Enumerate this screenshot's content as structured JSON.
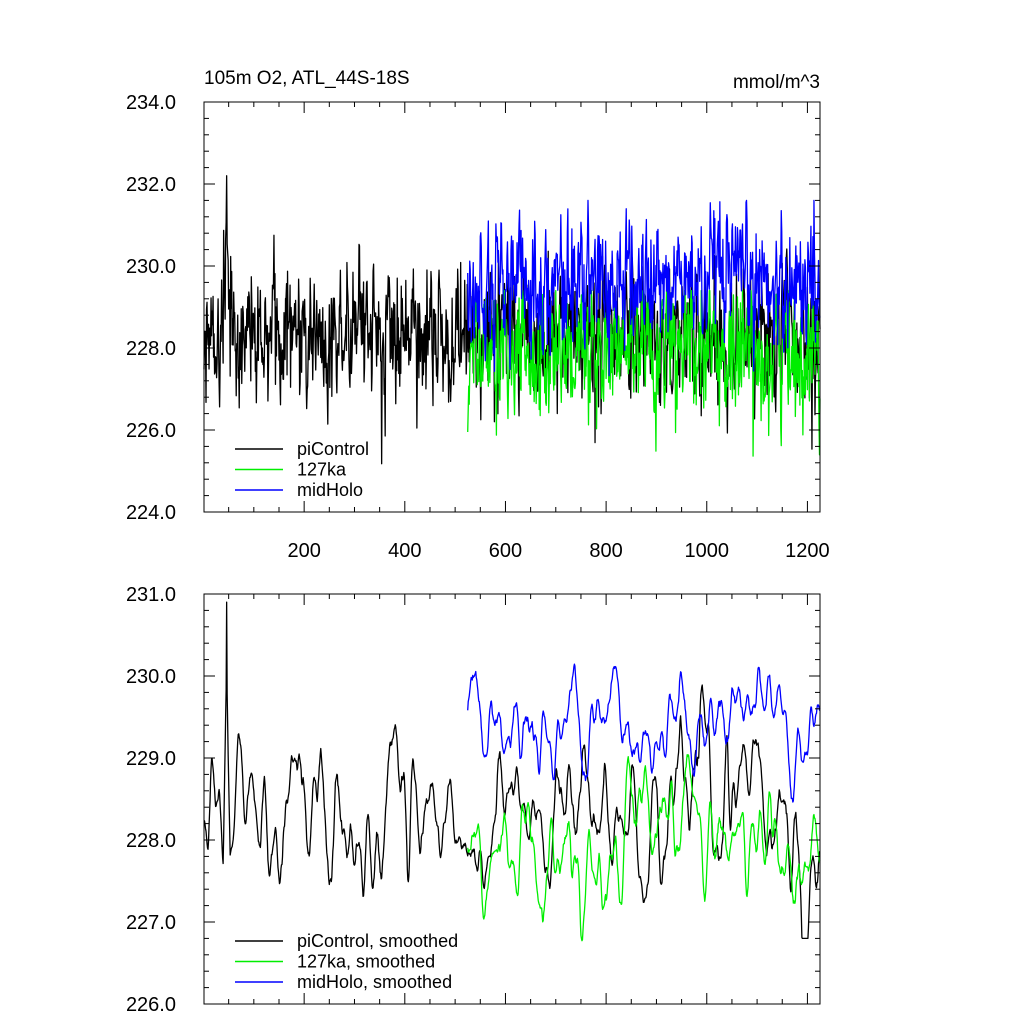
{
  "chart_data": [
    {
      "type": "line",
      "title": "105m O2, ATL_44S-18S",
      "units": "mmol/m^3",
      "xlabel": "",
      "ylabel": "",
      "xlim": [
        1,
        1225
      ],
      "ylim": [
        224.0,
        234.0
      ],
      "xticks": [
        200,
        400,
        600,
        800,
        1000,
        1200
      ],
      "xtick_labels": [
        "200",
        "400",
        "600",
        "800",
        "1000",
        "1200"
      ],
      "yticks": [
        224.0,
        226.0,
        228.0,
        230.0,
        232.0,
        234.0
      ],
      "ytick_labels": [
        "224.0",
        "226.0",
        "228.0",
        "230.0",
        "232.0",
        "234.0"
      ],
      "legend_position": "bottom-left",
      "series": [
        {
          "name": "piControl",
          "color": "#000000",
          "x_start": 1,
          "x_end": 1225,
          "n": 1225,
          "mean": 228.3,
          "std": 0.8,
          "min": 225.1,
          "max": 232.2
        },
        {
          "name": "127ka",
          "color": "#00ee00",
          "x_start": 525,
          "x_end": 1225,
          "n": 701,
          "mean": 227.9,
          "std": 0.85,
          "min": 224.6,
          "max": 229.4
        },
        {
          "name": "midHolo",
          "color": "#0000ff",
          "x_start": 525,
          "x_end": 1225,
          "n": 701,
          "mean": 229.6,
          "std": 0.75,
          "min": 227.1,
          "max": 231.6
        }
      ]
    },
    {
      "type": "line",
      "title": "",
      "xlabel": "",
      "ylabel": "",
      "xlim": [
        1,
        1225
      ],
      "ylim": [
        226.0,
        231.0
      ],
      "xticks": [
        200,
        400,
        600,
        800,
        1000,
        1200
      ],
      "yticks": [
        226.0,
        227.0,
        228.0,
        229.0,
        230.0,
        231.0
      ],
      "ytick_labels": [
        "226.0",
        "227.0",
        "228.0",
        "229.0",
        "230.0",
        "231.0"
      ],
      "legend_position": "bottom-left",
      "series": [
        {
          "name": "piControl, smoothed",
          "color": "#000000",
          "x_start": 1,
          "x_end": 1225,
          "n": 1225,
          "mean": 228.3,
          "std": 0.55,
          "min": 226.8,
          "max": 230.9
        },
        {
          "name": "127ka, smoothed",
          "color": "#00ee00",
          "x_start": 525,
          "x_end": 1225,
          "n": 701,
          "mean": 227.9,
          "std": 0.5,
          "min": 226.35,
          "max": 229.15
        },
        {
          "name": "midHolo, smoothed",
          "color": "#0000ff",
          "x_start": 525,
          "x_end": 1225,
          "n": 701,
          "mean": 229.5,
          "std": 0.45,
          "min": 228.0,
          "max": 230.5
        }
      ]
    }
  ]
}
